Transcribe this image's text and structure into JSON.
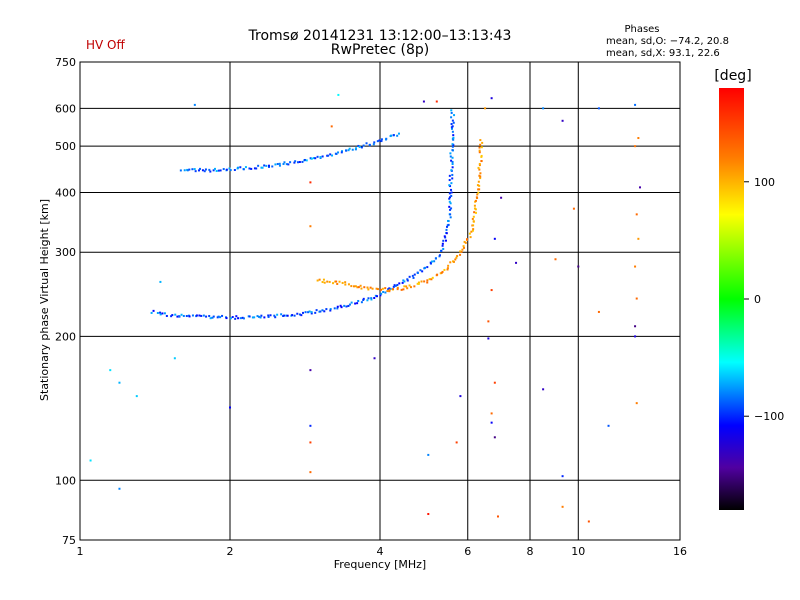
{
  "status": {
    "hv_label": "HV Off",
    "hv_color": "#c00000"
  },
  "header": {
    "title_line1": "Tromsø 20141231 13:12:00–13:13:43",
    "title_line2": "RwPretec (8p)",
    "stats_title": "Phases",
    "stats_o": "mean, sd,O: −74.2, 20.8",
    "stats_x": "mean, sd,X:  93.1, 22.6"
  },
  "chart_data": {
    "type": "scatter",
    "xlabel": "Frequency [MHz]",
    "ylabel": "Stationary phase Virtual Height [km]",
    "x_scale": "log",
    "y_scale": "log",
    "xlim": [
      1,
      16
    ],
    "ylim": [
      75,
      750
    ],
    "x_ticks": [
      1,
      2,
      4,
      6,
      8,
      10,
      16
    ],
    "y_ticks": [
      75,
      100,
      200,
      300,
      400,
      500,
      600,
      750
    ],
    "x_gridlines": [
      1,
      2,
      4,
      6,
      8,
      10,
      16
    ],
    "y_gridlines": [
      100,
      200,
      300,
      400,
      500,
      600
    ],
    "grid": true,
    "colorbar": {
      "label": "[deg]",
      "range": [
        -180,
        180
      ],
      "ticks": [
        100,
        0,
        -100
      ],
      "tick_labels": [
        "100",
        "0",
        "−100"
      ]
    },
    "traces": [
      {
        "x": [
          1.4,
          1.5,
          1.7,
          2.0,
          2.4,
          2.8,
          3.2,
          3.6,
          3.9,
          4.2,
          4.6,
          5.0,
          5.3,
          5.5,
          5.55,
          5.6
        ],
        "y": [
          225,
          222,
          220,
          219,
          220,
          223,
          228,
          235,
          242,
          252,
          265,
          280,
          300,
          340,
          420,
          600
        ],
        "phase": -90
      },
      {
        "x": [
          1.6,
          1.8,
          2.0,
          2.3,
          2.6,
          3.0,
          3.4,
          3.8,
          4.1,
          4.4
        ],
        "y": [
          445,
          445,
          447,
          452,
          460,
          472,
          487,
          505,
          518,
          532
        ],
        "phase": -85
      },
      {
        "x": [
          3.0,
          3.4,
          3.8,
          4.2,
          4.6,
          5.0,
          5.4,
          5.8,
          6.1,
          6.3,
          6.4
        ],
        "y": [
          262,
          258,
          252,
          250,
          254,
          262,
          275,
          300,
          330,
          400,
          520
        ],
        "phase": 110
      }
    ],
    "scatter_points": [
      {
        "x": 1.15,
        "y": 170,
        "phase": -60
      },
      {
        "x": 1.2,
        "y": 160,
        "phase": -70
      },
      {
        "x": 1.3,
        "y": 150,
        "phase": -65
      },
      {
        "x": 1.45,
        "y": 260,
        "phase": -70
      },
      {
        "x": 1.55,
        "y": 180,
        "phase": -65
      },
      {
        "x": 1.05,
        "y": 110,
        "phase": -60
      },
      {
        "x": 1.2,
        "y": 96,
        "phase": -80
      },
      {
        "x": 1.7,
        "y": 610,
        "phase": -80
      },
      {
        "x": 2.9,
        "y": 420,
        "phase": 160
      },
      {
        "x": 3.2,
        "y": 550,
        "phase": 130
      },
      {
        "x": 3.3,
        "y": 640,
        "phase": -55
      },
      {
        "x": 4.9,
        "y": 620,
        "phase": -130
      },
      {
        "x": 5.2,
        "y": 620,
        "phase": 160
      },
      {
        "x": 6.7,
        "y": 630,
        "phase": -120
      },
      {
        "x": 6.5,
        "y": 600,
        "phase": 110
      },
      {
        "x": 8.5,
        "y": 600,
        "phase": -80
      },
      {
        "x": 9.3,
        "y": 565,
        "phase": -130
      },
      {
        "x": 11.0,
        "y": 600,
        "phase": -90
      },
      {
        "x": 13.0,
        "y": 610,
        "phase": -85
      },
      {
        "x": 13.2,
        "y": 520,
        "phase": 120
      },
      {
        "x": 13.0,
        "y": 500,
        "phase": 125
      },
      {
        "x": 13.3,
        "y": 410,
        "phase": -140
      },
      {
        "x": 13.1,
        "y": 360,
        "phase": 130
      },
      {
        "x": 13.2,
        "y": 320,
        "phase": 110
      },
      {
        "x": 13.0,
        "y": 280,
        "phase": 120
      },
      {
        "x": 13.1,
        "y": 240,
        "phase": 130
      },
      {
        "x": 13.0,
        "y": 210,
        "phase": -150
      },
      {
        "x": 13.0,
        "y": 200,
        "phase": -120
      },
      {
        "x": 13.1,
        "y": 145,
        "phase": 120
      },
      {
        "x": 9.8,
        "y": 370,
        "phase": 130
      },
      {
        "x": 11.0,
        "y": 225,
        "phase": 130
      },
      {
        "x": 11.5,
        "y": 130,
        "phase": -90
      },
      {
        "x": 10.5,
        "y": 82,
        "phase": 140
      },
      {
        "x": 9.3,
        "y": 88,
        "phase": 120
      },
      {
        "x": 9.3,
        "y": 102,
        "phase": -100
      },
      {
        "x": 8.5,
        "y": 155,
        "phase": -130
      },
      {
        "x": 7.0,
        "y": 390,
        "phase": -140
      },
      {
        "x": 6.8,
        "y": 320,
        "phase": -110
      },
      {
        "x": 6.7,
        "y": 250,
        "phase": 150
      },
      {
        "x": 6.6,
        "y": 215,
        "phase": 140
      },
      {
        "x": 6.6,
        "y": 198,
        "phase": -120
      },
      {
        "x": 6.8,
        "y": 160,
        "phase": 150
      },
      {
        "x": 6.7,
        "y": 138,
        "phase": 130
      },
      {
        "x": 6.7,
        "y": 132,
        "phase": -110
      },
      {
        "x": 6.8,
        "y": 123,
        "phase": -150
      },
      {
        "x": 6.9,
        "y": 84,
        "phase": 140
      },
      {
        "x": 5.0,
        "y": 85,
        "phase": 170
      },
      {
        "x": 5.0,
        "y": 113,
        "phase": -80
      },
      {
        "x": 5.7,
        "y": 120,
        "phase": 150
      },
      {
        "x": 5.8,
        "y": 150,
        "phase": -120
      },
      {
        "x": 3.9,
        "y": 180,
        "phase": -130
      },
      {
        "x": 2.9,
        "y": 170,
        "phase": -140
      },
      {
        "x": 2.9,
        "y": 130,
        "phase": -100
      },
      {
        "x": 2.9,
        "y": 120,
        "phase": 150
      },
      {
        "x": 2.9,
        "y": 104,
        "phase": 130
      },
      {
        "x": 2.0,
        "y": 142,
        "phase": -110
      },
      {
        "x": 7.5,
        "y": 285,
        "phase": -130
      },
      {
        "x": 9.0,
        "y": 290,
        "phase": 130
      },
      {
        "x": 10.0,
        "y": 280,
        "phase": -150
      },
      {
        "x": 2.9,
        "y": 340,
        "phase": 120
      }
    ]
  }
}
